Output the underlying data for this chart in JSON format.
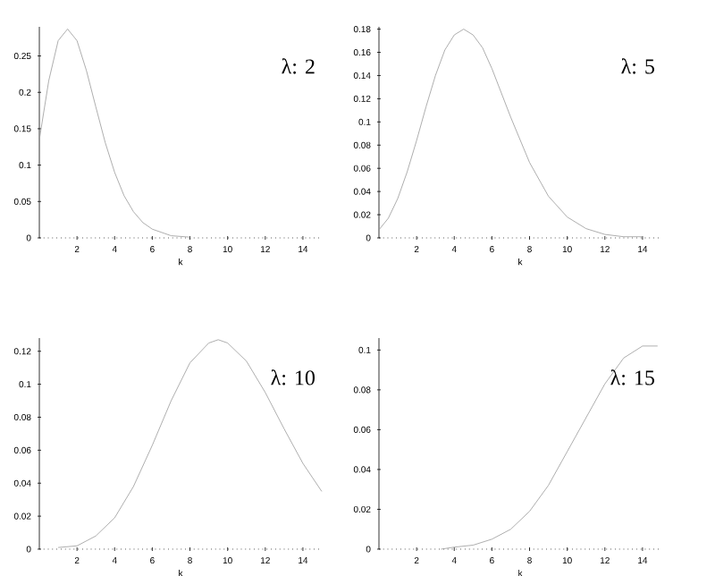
{
  "chart_data": [
    {
      "type": "line",
      "xlabel": "k",
      "annotations": [
        "λ: 2"
      ],
      "color": "#999999",
      "x": [
        0,
        0.5,
        1,
        1.5,
        2,
        2.5,
        3,
        3.5,
        4,
        4.5,
        5,
        5.5,
        6,
        7,
        8
      ],
      "values": [
        0.135,
        0.216,
        0.271,
        0.287,
        0.271,
        0.23,
        0.18,
        0.131,
        0.09,
        0.058,
        0.036,
        0.021,
        0.012,
        0.003,
        0.001
      ],
      "xlim": [
        0,
        15
      ],
      "xticks": [
        2,
        4,
        6,
        8,
        10,
        12,
        14
      ],
      "ylim": [
        0,
        0.29
      ],
      "yticks": [
        0,
        0.05,
        0.1,
        0.15,
        0.2,
        0.25
      ]
    },
    {
      "type": "line",
      "xlabel": "k",
      "annotations": [
        "λ: 5"
      ],
      "color": "#999999",
      "x": [
        0,
        0.5,
        1,
        1.5,
        2,
        2.5,
        3,
        3.5,
        4,
        4.5,
        5,
        5.5,
        6,
        7,
        8,
        9,
        10,
        11,
        12,
        13,
        14
      ],
      "values": [
        0.007,
        0.017,
        0.034,
        0.057,
        0.084,
        0.113,
        0.14,
        0.162,
        0.175,
        0.18,
        0.175,
        0.164,
        0.146,
        0.104,
        0.065,
        0.036,
        0.018,
        0.008,
        0.003,
        0.001,
        0.001
      ],
      "xlim": [
        0,
        15
      ],
      "xticks": [
        2,
        4,
        6,
        8,
        10,
        12,
        14
      ],
      "ylim": [
        0,
        0.182
      ],
      "yticks": [
        0,
        0.02,
        0.04,
        0.06,
        0.08,
        0.1,
        0.12,
        0.14,
        0.16,
        0.18
      ]
    },
    {
      "type": "line",
      "xlabel": "k",
      "annotations": [
        "λ: 10"
      ],
      "color": "#999999",
      "x": [
        1,
        2,
        3,
        4,
        5,
        6,
        7,
        8,
        9,
        9.5,
        10,
        11,
        12,
        13,
        14,
        15
      ],
      "values": [
        0.001,
        0.002,
        0.008,
        0.019,
        0.038,
        0.063,
        0.09,
        0.113,
        0.125,
        0.127,
        0.125,
        0.114,
        0.095,
        0.073,
        0.052,
        0.035
      ],
      "xlim": [
        0,
        15
      ],
      "xticks": [
        2,
        4,
        6,
        8,
        10,
        12,
        14
      ],
      "ylim": [
        0,
        0.128
      ],
      "yticks": [
        0,
        0.02,
        0.04,
        0.06,
        0.08,
        0.1,
        0.12
      ]
    },
    {
      "type": "line",
      "xlabel": "k",
      "annotations": [
        "λ: 15"
      ],
      "color": "#999999",
      "x": [
        3.3,
        4,
        5,
        6,
        7,
        8,
        9,
        10,
        11,
        12,
        13,
        14,
        14.8
      ],
      "values": [
        0.0,
        0.001,
        0.002,
        0.005,
        0.01,
        0.019,
        0.032,
        0.049,
        0.066,
        0.083,
        0.096,
        0.102,
        0.102
      ],
      "xlim": [
        0,
        15
      ],
      "xticks": [
        2,
        4,
        6,
        8,
        10,
        12,
        14
      ],
      "ylim": [
        0,
        0.106
      ],
      "yticks": [
        0,
        0.02,
        0.04,
        0.06,
        0.08,
        0.1
      ]
    }
  ]
}
